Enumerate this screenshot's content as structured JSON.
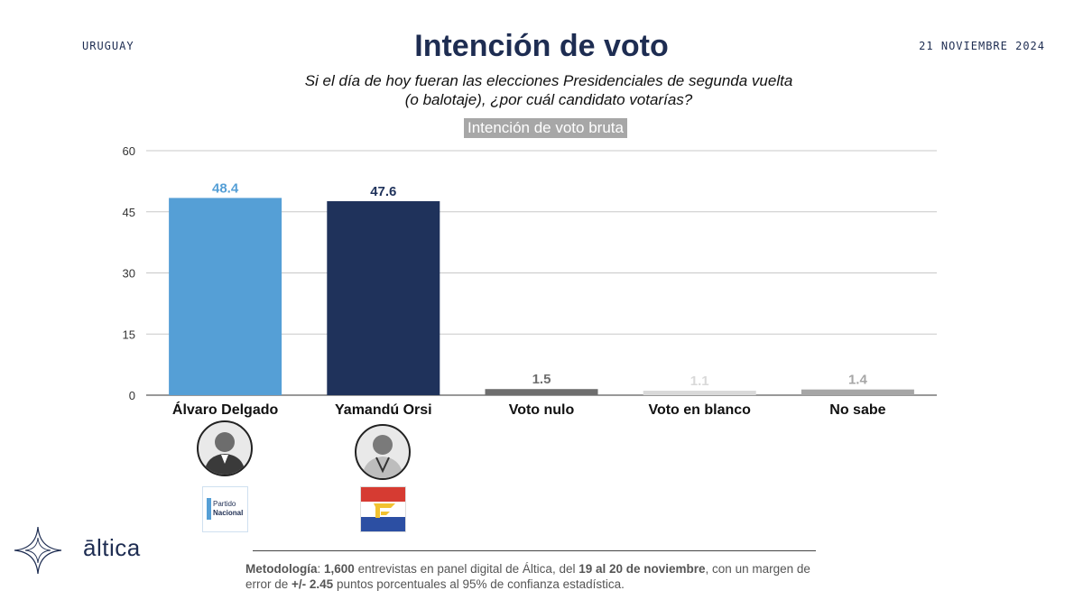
{
  "header": {
    "country": "URUGUAY",
    "date": "21 NOVIEMBRE 2024",
    "title": "Intención de voto",
    "subtitle_line1": "Si el día de hoy fueran las elecciones Presidenciales de segunda vuelta",
    "subtitle_line2": "(o balotaje), ¿por cuál candidato votarías?",
    "badge": "Intención de voto bruta"
  },
  "chart_data": {
    "type": "bar",
    "categories": [
      "Álvaro Delgado",
      "Yamandú Orsi",
      "Voto nulo",
      "Voto en blanco",
      "No sabe"
    ],
    "values": [
      48.4,
      47.6,
      1.5,
      1.1,
      1.4
    ],
    "value_labels": [
      "48.4",
      "47.6",
      "1.5",
      "1.1",
      "1.4"
    ],
    "colors": [
      "#559fd6",
      "#1f325b",
      "#6e6e6e",
      "#d9d9d9",
      "#a6a6a6"
    ],
    "label_colors": [
      "#559fd6",
      "#1f325b",
      "#6e6e6e",
      "#d9d9d9",
      "#a6a6a6"
    ],
    "yticks": [
      "0",
      "15",
      "30",
      "45",
      "60"
    ],
    "ylim": [
      0,
      60
    ],
    "grid": true,
    "title": "Intención de voto",
    "xlabel": "",
    "ylabel": ""
  },
  "candidates": [
    {
      "photo_icon": "candidate-photo-icon",
      "party_text_1": "Partido",
      "party_text_2": "Nacional"
    },
    {
      "photo_icon": "candidate-photo-icon",
      "party_logo": "frente-amplio-flag-icon"
    }
  ],
  "brand": {
    "name": "āltica",
    "icon": "star-icon"
  },
  "footer": {
    "p1": "Metodología",
    "p2": ": ",
    "p3": "1,600",
    "p4": " entrevistas en panel digital de Áltica, del ",
    "p5": "19 al 20 de noviembre",
    "p6": ", con un margen de error de ",
    "p7": "+/- 2.45",
    "p8": " puntos porcentuales al 95% de confianza estadística."
  }
}
